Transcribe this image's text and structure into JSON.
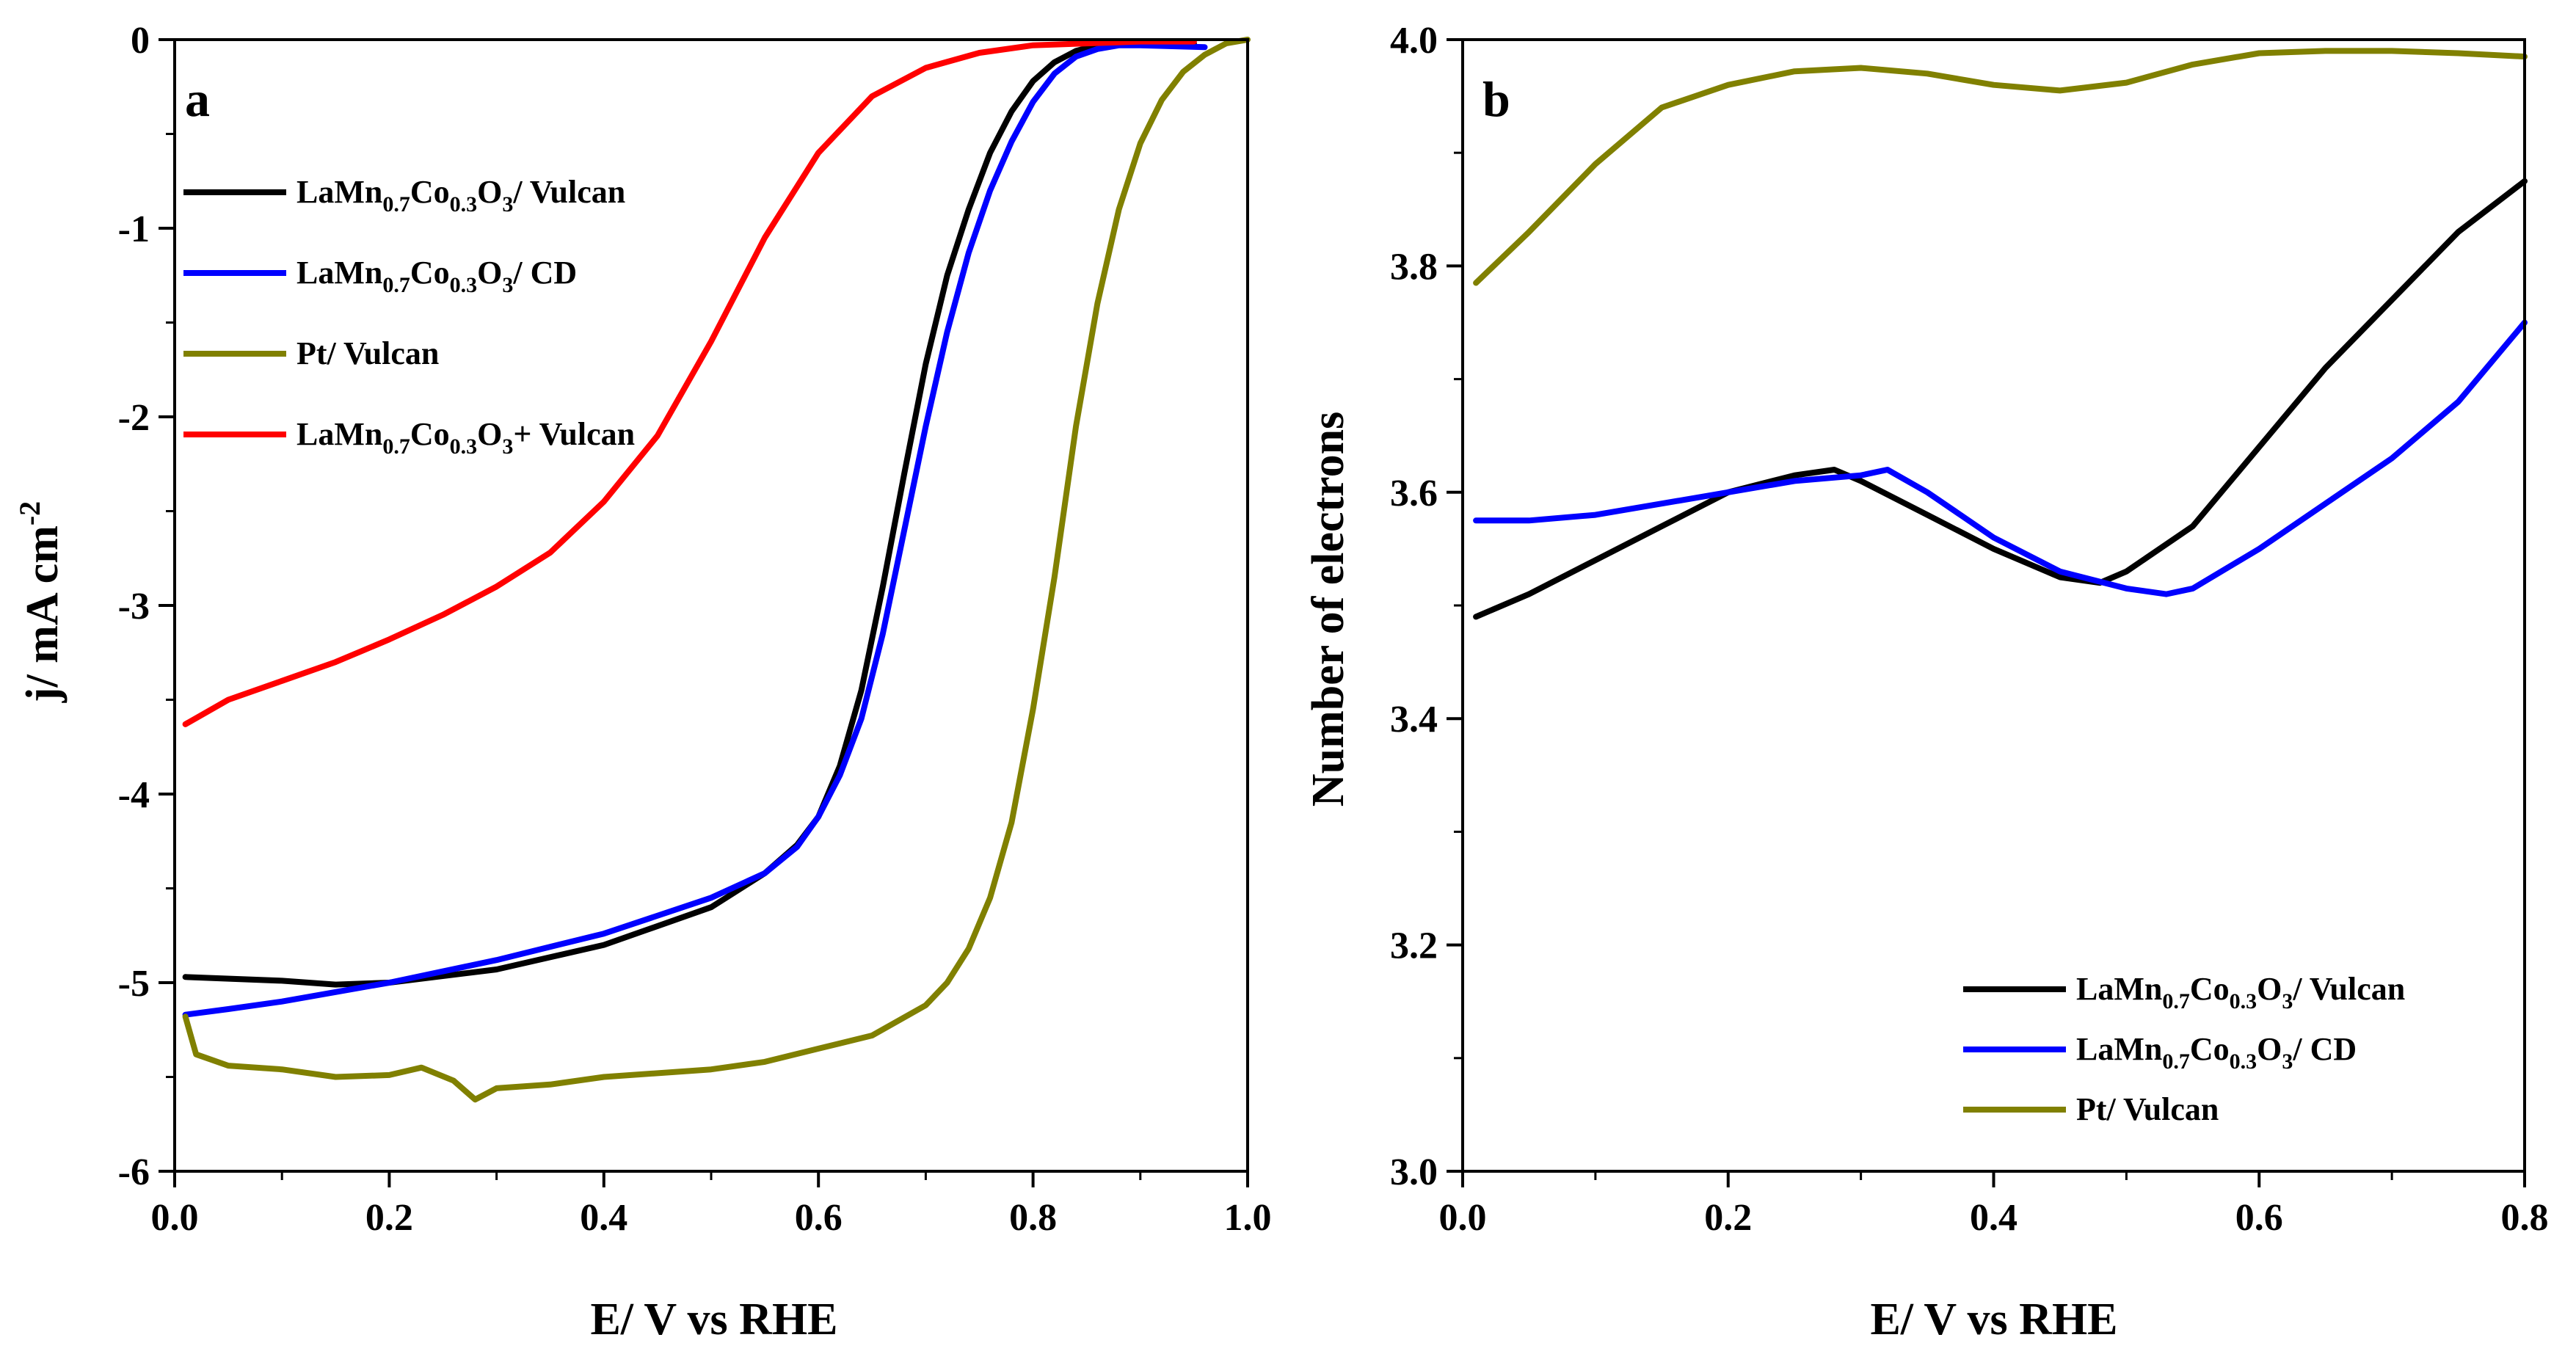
{
  "chart_data": [
    {
      "type": "line",
      "panel_label": "a",
      "xlabel": "E/ V vs RHE",
      "ylabel": {
        "main": "j/ mA cm",
        "sup": "-2"
      },
      "xlim": [
        0.0,
        1.0
      ],
      "ylim": [
        -6,
        0
      ],
      "xticks": [
        0.0,
        0.2,
        0.4,
        0.6,
        0.8,
        1.0
      ],
      "xtick_labels": [
        "0.0",
        "0.2",
        "0.4",
        "0.6",
        "0.8",
        "1.0"
      ],
      "yticks": [
        0,
        -1,
        -2,
        -3,
        -4,
        -5,
        -6
      ],
      "ytick_labels": [
        "0",
        "-1",
        "-2",
        "-3",
        "-4",
        "-5",
        "-6"
      ],
      "legend_position": "top-left",
      "series": [
        {
          "name": "LaMn0.7Co0.3O3/ Vulcan",
          "label_parts": [
            "LaMn",
            "0.7",
            "Co",
            "0.3",
            "O",
            "3",
            "/ Vulcan"
          ],
          "color": "#000000",
          "x": [
            0.01,
            0.1,
            0.15,
            0.2,
            0.3,
            0.4,
            0.5,
            0.55,
            0.58,
            0.6,
            0.62,
            0.64,
            0.66,
            0.68,
            0.7,
            0.72,
            0.74,
            0.76,
            0.78,
            0.8,
            0.82,
            0.84,
            0.86,
            0.88,
            0.9,
            0.95
          ],
          "values": [
            -4.97,
            -4.99,
            -5.01,
            -5.0,
            -4.93,
            -4.8,
            -4.6,
            -4.42,
            -4.27,
            -4.12,
            -3.85,
            -3.45,
            -2.9,
            -2.3,
            -1.72,
            -1.25,
            -0.9,
            -0.6,
            -0.38,
            -0.22,
            -0.12,
            -0.06,
            -0.03,
            -0.02,
            -0.02,
            -0.02
          ]
        },
        {
          "name": "LaMn0.7Co0.3O3/ CD",
          "label_parts": [
            "LaMn",
            "0.7",
            "Co",
            "0.3",
            "O",
            "3",
            "/ CD"
          ],
          "color": "#0000ff",
          "x": [
            0.01,
            0.05,
            0.1,
            0.15,
            0.2,
            0.3,
            0.4,
            0.5,
            0.55,
            0.58,
            0.6,
            0.62,
            0.64,
            0.66,
            0.68,
            0.7,
            0.72,
            0.74,
            0.76,
            0.78,
            0.8,
            0.82,
            0.84,
            0.86,
            0.88,
            0.9,
            0.96
          ],
          "values": [
            -5.17,
            -5.14,
            -5.1,
            -5.05,
            -5.0,
            -4.88,
            -4.74,
            -4.55,
            -4.42,
            -4.28,
            -4.12,
            -3.9,
            -3.6,
            -3.15,
            -2.6,
            -2.05,
            -1.55,
            -1.13,
            -0.8,
            -0.54,
            -0.33,
            -0.18,
            -0.09,
            -0.05,
            -0.03,
            -0.03,
            -0.04
          ]
        },
        {
          "name": "Pt/ Vulcan",
          "label_parts": [
            "Pt/ Vulcan"
          ],
          "color": "#808000",
          "x": [
            0.01,
            0.02,
            0.05,
            0.1,
            0.15,
            0.2,
            0.23,
            0.26,
            0.28,
            0.3,
            0.35,
            0.4,
            0.5,
            0.55,
            0.6,
            0.65,
            0.7,
            0.72,
            0.74,
            0.76,
            0.78,
            0.8,
            0.82,
            0.84,
            0.86,
            0.88,
            0.9,
            0.92,
            0.94,
            0.96,
            0.98,
            1.0
          ],
          "values": [
            -5.18,
            -5.38,
            -5.44,
            -5.46,
            -5.5,
            -5.49,
            -5.45,
            -5.52,
            -5.62,
            -5.56,
            -5.54,
            -5.5,
            -5.46,
            -5.42,
            -5.35,
            -5.28,
            -5.12,
            -5.0,
            -4.82,
            -4.55,
            -4.15,
            -3.55,
            -2.85,
            -2.05,
            -1.4,
            -0.9,
            -0.55,
            -0.32,
            -0.17,
            -0.08,
            -0.02,
            0.0
          ]
        },
        {
          "name": "LaMn0.7Co0.3O3+ Vulcan",
          "label_parts": [
            "LaMn",
            "0.7",
            "Co",
            "0.3",
            "O",
            "3",
            "+ Vulcan"
          ],
          "color": "#ff0000",
          "x": [
            0.01,
            0.05,
            0.1,
            0.15,
            0.2,
            0.25,
            0.3,
            0.35,
            0.4,
            0.45,
            0.5,
            0.55,
            0.6,
            0.65,
            0.7,
            0.75,
            0.8,
            0.85,
            0.9,
            0.95
          ],
          "values": [
            -3.63,
            -3.5,
            -3.4,
            -3.3,
            -3.18,
            -3.05,
            -2.9,
            -2.72,
            -2.45,
            -2.1,
            -1.6,
            -1.05,
            -0.6,
            -0.3,
            -0.15,
            -0.07,
            -0.03,
            -0.02,
            -0.01,
            -0.01
          ]
        }
      ]
    },
    {
      "type": "line",
      "panel_label": "b",
      "xlabel": "E/ V vs RHE",
      "ylabel": "Number of electrons",
      "xlim": [
        0.0,
        0.8
      ],
      "ylim": [
        3.0,
        4.0
      ],
      "xticks": [
        0.0,
        0.2,
        0.4,
        0.6,
        0.8
      ],
      "xtick_labels": [
        "0.0",
        "0.2",
        "0.4",
        "0.6",
        "0.8"
      ],
      "yticks": [
        3.0,
        3.2,
        3.4,
        3.6,
        3.8,
        4.0
      ],
      "ytick_labels": [
        "3.0",
        "3.2",
        "3.4",
        "3.6",
        "3.8",
        "4.0"
      ],
      "legend_position": "bottom-right",
      "series": [
        {
          "name": "LaMn0.7Co0.3O3/ Vulcan",
          "label_parts": [
            "LaMn",
            "0.7",
            "Co",
            "0.3",
            "O",
            "3",
            "/ Vulcan"
          ],
          "color": "#000000",
          "x": [
            0.01,
            0.05,
            0.1,
            0.15,
            0.2,
            0.25,
            0.28,
            0.3,
            0.35,
            0.4,
            0.45,
            0.48,
            0.5,
            0.55,
            0.6,
            0.65,
            0.7,
            0.75,
            0.8
          ],
          "values": [
            3.49,
            3.51,
            3.54,
            3.57,
            3.6,
            3.615,
            3.62,
            3.61,
            3.58,
            3.55,
            3.525,
            3.52,
            3.53,
            3.57,
            3.64,
            3.71,
            3.77,
            3.83,
            3.875
          ]
        },
        {
          "name": "LaMn0.7Co0.3O3/ CD",
          "label_parts": [
            "LaMn",
            "0.7",
            "Co",
            "0.3",
            "O",
            "3",
            "/ CD"
          ],
          "color": "#0000ff",
          "x": [
            0.01,
            0.05,
            0.1,
            0.15,
            0.2,
            0.25,
            0.3,
            0.32,
            0.35,
            0.4,
            0.45,
            0.5,
            0.53,
            0.55,
            0.6,
            0.65,
            0.7,
            0.75,
            0.8
          ],
          "values": [
            3.575,
            3.575,
            3.58,
            3.59,
            3.6,
            3.61,
            3.615,
            3.62,
            3.6,
            3.56,
            3.53,
            3.515,
            3.51,
            3.515,
            3.55,
            3.59,
            3.63,
            3.68,
            3.75
          ]
        },
        {
          "name": "Pt/ Vulcan",
          "label_parts": [
            "Pt/ Vulcan"
          ],
          "color": "#808000",
          "x": [
            0.01,
            0.05,
            0.1,
            0.15,
            0.2,
            0.25,
            0.3,
            0.35,
            0.4,
            0.45,
            0.5,
            0.55,
            0.6,
            0.65,
            0.7,
            0.75,
            0.8
          ],
          "values": [
            3.785,
            3.83,
            3.89,
            3.94,
            3.96,
            3.972,
            3.975,
            3.97,
            3.96,
            3.955,
            3.962,
            3.978,
            3.988,
            3.99,
            3.99,
            3.988,
            3.985
          ]
        }
      ]
    }
  ]
}
